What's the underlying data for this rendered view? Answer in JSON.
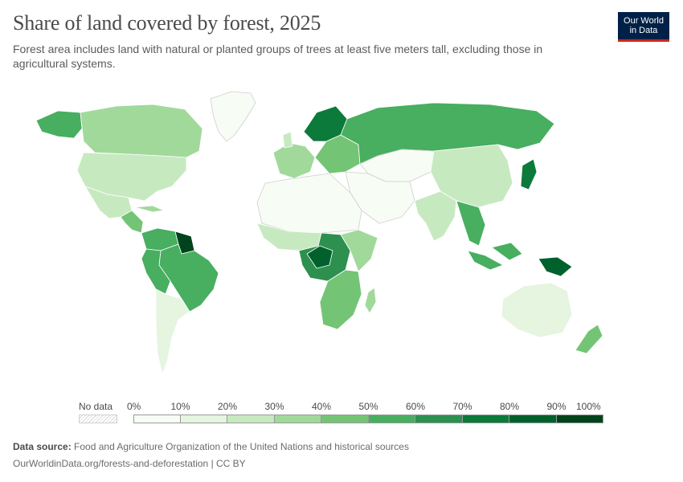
{
  "header": {
    "title": "Share of land covered by forest, 2025",
    "subtitle": "Forest area includes land with natural or planted groups of trees at least five meters tall, excluding those in agricultural systems."
  },
  "logo": {
    "line1": "Our World",
    "line2": "in Data"
  },
  "legend": {
    "no_data_label": "No data",
    "ticks": [
      "0%",
      "10%",
      "20%",
      "30%",
      "40%",
      "50%",
      "60%",
      "70%",
      "80%",
      "90%",
      "100%"
    ],
    "bin_colors": [
      "#f7fcf5",
      "#e5f5e0",
      "#c7e9c0",
      "#a1d99b",
      "#74c476",
      "#48ae60",
      "#2d904f",
      "#0b7a3a",
      "#00612d",
      "#00441b"
    ]
  },
  "footer": {
    "source_label": "Data source:",
    "source_text": "Food and Agriculture Organization of the United Nations and historical sources",
    "url_line": "OurWorldinData.org/forests-and-deforestation | CC BY"
  },
  "colors": {
    "ocean": "#ffffff",
    "border": "#ffffff",
    "brand_navy": "#002147",
    "brand_red": "#ce261e"
  }
}
